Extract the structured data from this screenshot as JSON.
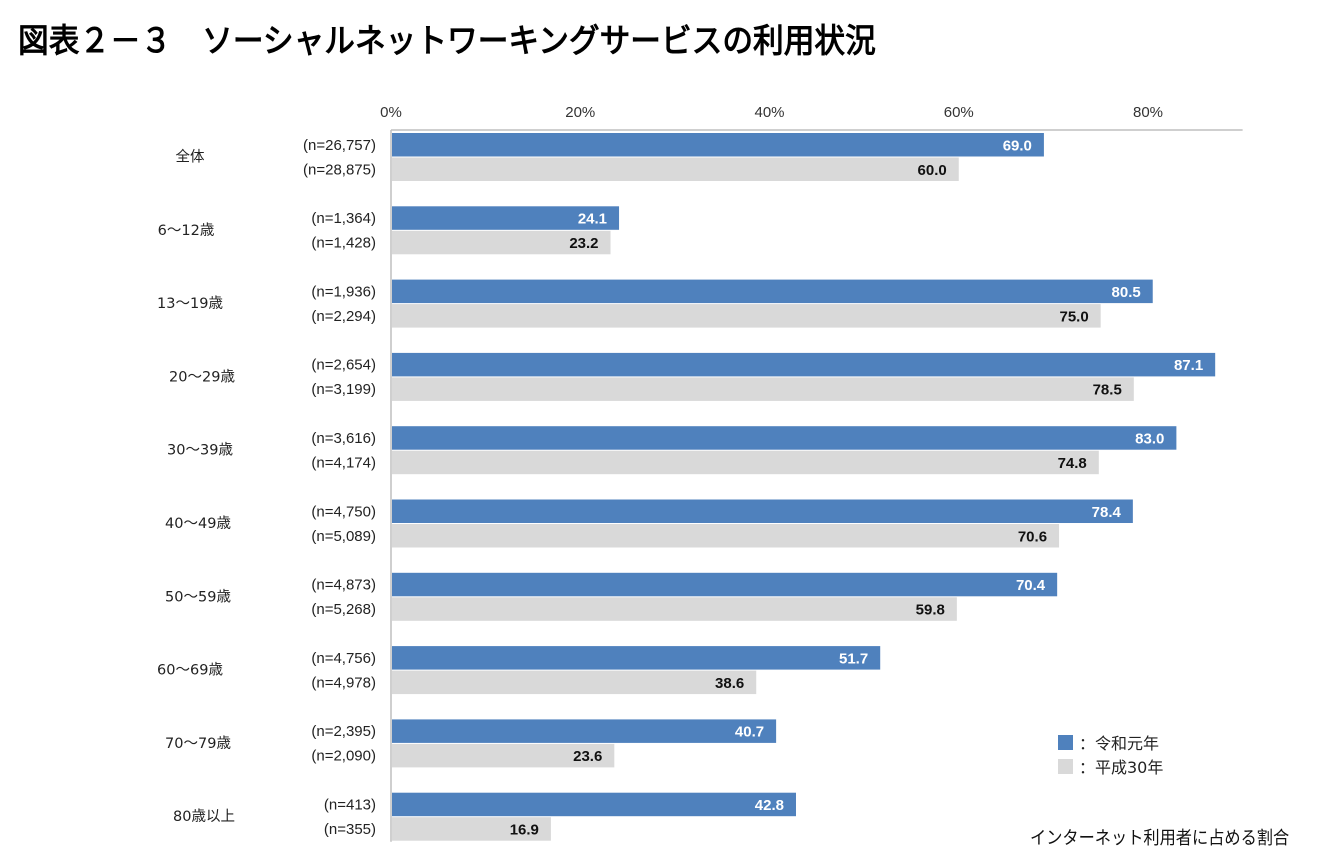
{
  "title": "図表２－３　ソーシャルネットワーキングサービスの利用状況",
  "colors": {
    "reiwa": "#4f81bd",
    "heisei": "#d9d9d9",
    "axis": "#bfbfbf"
  },
  "legend": {
    "items": [
      {
        "label": "：令和元年",
        "series": "reiwa"
      },
      {
        "label": "：平成30年",
        "series": "heisei"
      }
    ]
  },
  "note": "インターネット利用者に占める割合",
  "chart_data": {
    "type": "bar",
    "orientation": "horizontal",
    "title": "図表２－３　ソーシャルネットワーキングサービスの利用状況",
    "xlabel": "インターネット利用者に占める割合",
    "ylabel": "",
    "xlim": [
      0,
      90
    ],
    "x_ticks": [
      "0%",
      "20%",
      "40%",
      "60%",
      "80%"
    ],
    "x_tick_values": [
      0,
      20,
      40,
      60,
      80
    ],
    "grid": false,
    "legend_position": "bottom-right",
    "categories": [
      "全体",
      "6～12歳",
      "13～19歳",
      "20～29歳",
      "30～39歳",
      "40～49歳",
      "50～59歳",
      "60～69歳",
      "70～79歳",
      "80歳以上"
    ],
    "series": [
      {
        "name": "令和元年",
        "key": "reiwa",
        "values": [
          69.0,
          24.1,
          80.5,
          87.1,
          83.0,
          78.4,
          70.4,
          51.7,
          40.7,
          42.8
        ],
        "labels": [
          "69.0",
          "24.1",
          "80.5",
          "87.1",
          "83.0",
          "78.4",
          "70.4",
          "51.7",
          "40.7",
          "42.8"
        ],
        "n": [
          "(n=26,757)",
          "(n=1,364)",
          "(n=1,936)",
          "(n=2,654)",
          "(n=3,616)",
          "(n=4,750)",
          "(n=4,873)",
          "(n=4,756)",
          "(n=2,395)",
          "(n=413)"
        ]
      },
      {
        "name": "平成30年",
        "key": "heisei",
        "values": [
          60.0,
          23.2,
          75.0,
          78.5,
          74.8,
          70.6,
          59.8,
          38.6,
          23.6,
          16.9
        ],
        "labels": [
          "60.0",
          "23.2",
          "75.0",
          "78.5",
          "74.8",
          "70.6",
          "59.8",
          "38.6",
          "23.6",
          "16.9"
        ],
        "n": [
          "(n=28,875)",
          "(n=1,428)",
          "(n=2,294)",
          "(n=3,199)",
          "(n=4,174)",
          "(n=5,089)",
          "(n=5,268)",
          "(n=4,978)",
          "(n=2,090)",
          "(n=355)"
        ]
      }
    ]
  }
}
